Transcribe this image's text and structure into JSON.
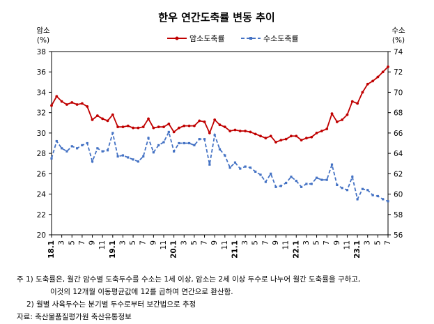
{
  "chart_data": {
    "type": "line",
    "title": "한우 연간도축률 변동 추이",
    "y_left": {
      "label_line1": "암소",
      "label_line2": "(%)",
      "min": 20,
      "max": 38,
      "ticks": [
        20,
        22,
        24,
        26,
        28,
        30,
        32,
        34,
        36,
        38
      ]
    },
    "y_right": {
      "label_line1": "수소",
      "label_line2": "(%)",
      "min": 56,
      "max": 74,
      "ticks": [
        56,
        58,
        60,
        62,
        64,
        66,
        68,
        70,
        72,
        74
      ]
    },
    "x_labels": [
      "18.1",
      "3",
      "5",
      "7",
      "9",
      "11",
      "19.1",
      "3",
      "5",
      "7",
      "9",
      "11",
      "20.1",
      "3",
      "5",
      "7",
      "9",
      "11",
      "21.1",
      "3",
      "5",
      "7",
      "9",
      "11",
      "22.1",
      "3",
      "5",
      "7",
      "9",
      "11",
      "23.1",
      "3",
      "5",
      "7"
    ],
    "legend_position": "top-center",
    "series": [
      {
        "name": "암소도축률",
        "color": "#c00000",
        "style": "solid",
        "axis": "left",
        "values": [
          32.7,
          33.6,
          33.1,
          32.8,
          33.0,
          32.8,
          32.9,
          32.6,
          31.3,
          31.7,
          31.4,
          31.2,
          31.8,
          30.6,
          30.6,
          30.7,
          30.5,
          30.5,
          30.6,
          31.4,
          30.5,
          30.6,
          30.6,
          30.9,
          30.1,
          30.5,
          30.7,
          30.7,
          30.7,
          31.2,
          31.1,
          30.0,
          31.3,
          30.8,
          30.6,
          30.2,
          30.3,
          30.2,
          30.2,
          30.1,
          29.9,
          29.7,
          29.5,
          29.7,
          29.1,
          29.3,
          29.4,
          29.7,
          29.7,
          29.3,
          29.5,
          29.6,
          30.0,
          30.2,
          30.4,
          31.9,
          31.1,
          31.3,
          31.8,
          33.1,
          32.9,
          34.0,
          34.8,
          35.1,
          35.5,
          36.0,
          36.5
        ]
      },
      {
        "name": "수소도축률",
        "color": "#4472c4",
        "style": "dashed",
        "axis": "right",
        "values": [
          63.5,
          65.2,
          64.5,
          64.2,
          64.7,
          64.5,
          64.8,
          65.0,
          63.2,
          64.5,
          64.2,
          64.3,
          66.0,
          63.7,
          63.8,
          63.6,
          63.4,
          63.2,
          63.7,
          65.5,
          64.1,
          64.8,
          65.1,
          66.1,
          64.2,
          65.0,
          65.0,
          65.0,
          64.8,
          65.4,
          65.4,
          62.9,
          65.8,
          64.4,
          63.8,
          62.6,
          63.1,
          62.5,
          62.7,
          62.6,
          62.2,
          61.9,
          61.2,
          62.0,
          60.7,
          60.8,
          61.1,
          61.7,
          61.3,
          60.7,
          61.0,
          61.0,
          61.6,
          61.4,
          61.4,
          62.9,
          60.9,
          60.6,
          60.4,
          61.7,
          59.5,
          60.5,
          60.4,
          59.9,
          59.8,
          59.5,
          59.3
        ]
      }
    ]
  },
  "notes": {
    "line1": "주 1) 도축률은, 월간 암수별 도축두수를 수소는 1세 이상, 암소는 2세 이상 두수로 나누어 월간 도축률을 구하고,",
    "line2": "이것의 12개월 이동평균값에 12를 곱하여 연간으로 환산함.",
    "line3": "2) 월별 사육두수는 분기별 두수로부터 보간법으로 추정",
    "source": "자료: 축산물품질평가원 축산유통정보"
  }
}
